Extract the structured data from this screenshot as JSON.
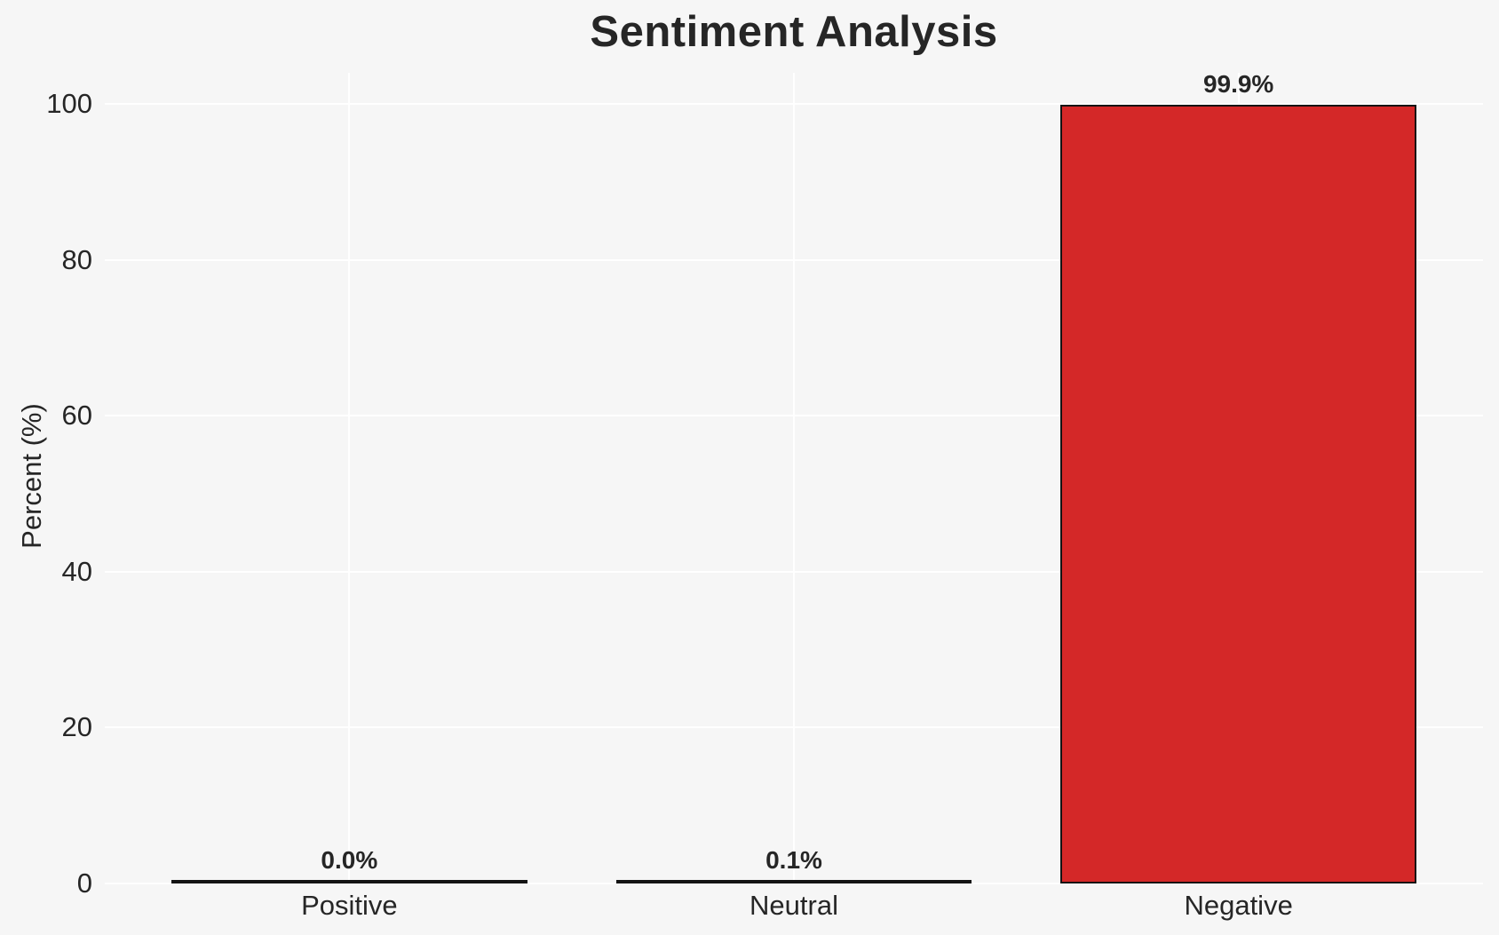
{
  "chart_data": {
    "type": "bar",
    "title": "Sentiment Analysis",
    "xlabel": "",
    "ylabel": "Percent (%)",
    "categories": [
      "Positive",
      "Neutral",
      "Negative"
    ],
    "values": [
      0.0,
      0.1,
      99.9
    ],
    "bar_labels": [
      "0.0%",
      "0.1%",
      "99.9%"
    ],
    "yticks": [
      0,
      20,
      40,
      60,
      80,
      100
    ],
    "ylim": [
      0,
      104
    ],
    "grid": true,
    "legend_position": "none",
    "colors": {
      "bar_fill": "#d42828",
      "bar_edge": "#131313",
      "background": "#f6f6f6",
      "gridline": "#ffffff",
      "text": "#262626"
    }
  }
}
